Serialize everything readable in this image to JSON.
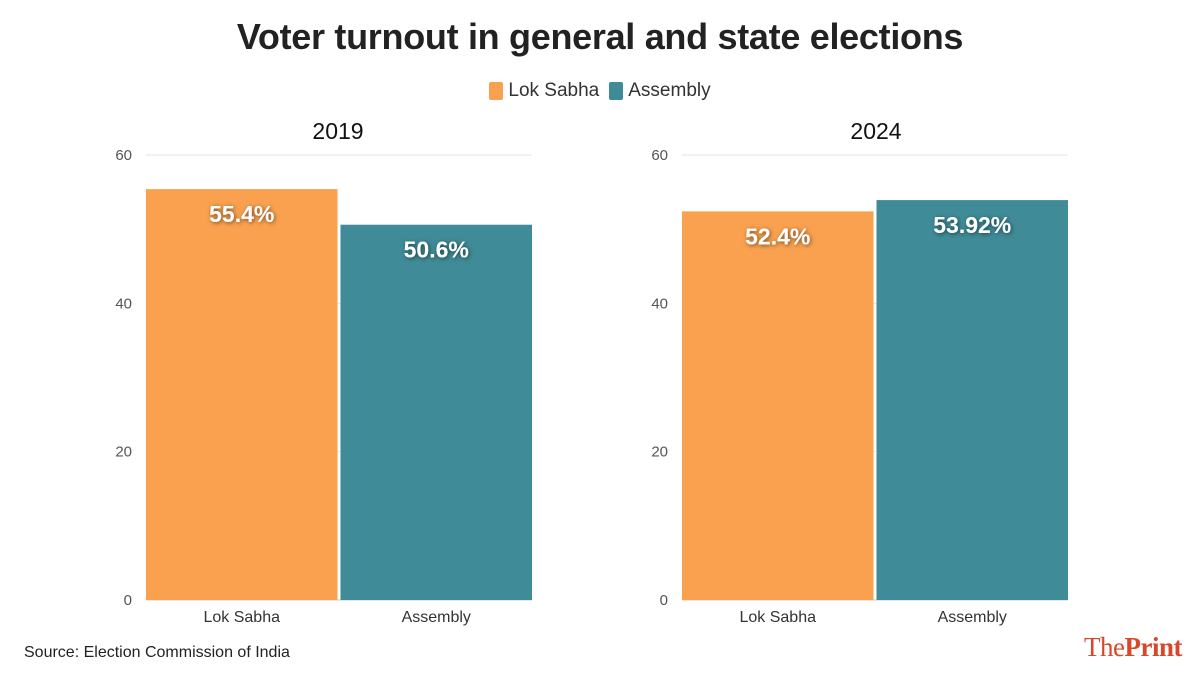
{
  "title": "Voter turnout in general and state elections",
  "legend": [
    {
      "label": "Lok Sabha",
      "color": "#f9a14f"
    },
    {
      "label": "Assembly",
      "color": "#3f8b97"
    }
  ],
  "chart_data": [
    {
      "type": "bar",
      "title": "2019",
      "categories": [
        "Lok Sabha",
        "Assembly"
      ],
      "values": [
        55.4,
        50.6
      ],
      "data_labels": [
        "55.4%",
        "50.6%"
      ],
      "colors": [
        "#f9a14f",
        "#3f8b97"
      ],
      "ylim": [
        0,
        60
      ],
      "yticks": [
        0,
        20,
        40,
        60
      ],
      "xlabel": "",
      "ylabel": "",
      "grid": true
    },
    {
      "type": "bar",
      "title": "2024",
      "categories": [
        "Lok Sabha",
        "Assembly"
      ],
      "values": [
        52.4,
        53.92
      ],
      "data_labels": [
        "52.4%",
        "53.92%"
      ],
      "colors": [
        "#f9a14f",
        "#3f8b97"
      ],
      "ylim": [
        0,
        60
      ],
      "yticks": [
        0,
        20,
        40,
        60
      ],
      "xlabel": "",
      "ylabel": "",
      "grid": true
    }
  ],
  "source": "Source: Election Commission of India",
  "brand": {
    "part1": "The",
    "part2": "Print"
  }
}
